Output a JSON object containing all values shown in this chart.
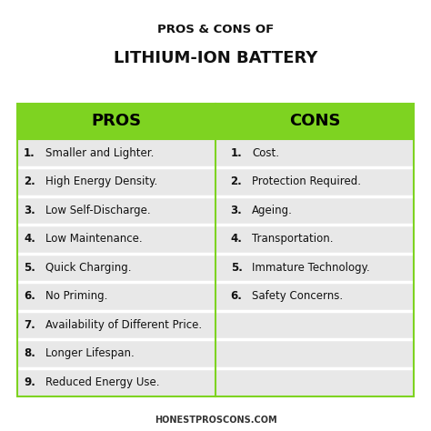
{
  "title_line1": "PROS & CONS OF",
  "title_line2": "LITHIUM-ION BATTERY",
  "pros_header": "PROS",
  "cons_header": "CONS",
  "pros": [
    "Smaller and Lighter.",
    "High Energy Density.",
    "Low Self-Discharge.",
    "Low Maintenance.",
    "Quick Charging.",
    "No Priming.",
    "Availability of Different Price.",
    "Longer Lifespan.",
    "Reduced Energy Use."
  ],
  "cons": [
    "Cost.",
    "Protection Required.",
    "Ageing.",
    "Transportation.",
    "Immature Technology.",
    "Safety Concerns.",
    "",
    "",
    ""
  ],
  "header_green": "#7ED321",
  "header_text_color": "#000000",
  "row_bg": "#e8e8e8",
  "row_separator_color": "#ffffff",
  "border_color": "#7ED321",
  "title_color": "#111111",
  "body_text_color": "#111111",
  "footer_text": "HONESTPROSCONS.COM",
  "background_color": "#ffffff",
  "num_rows": 9
}
